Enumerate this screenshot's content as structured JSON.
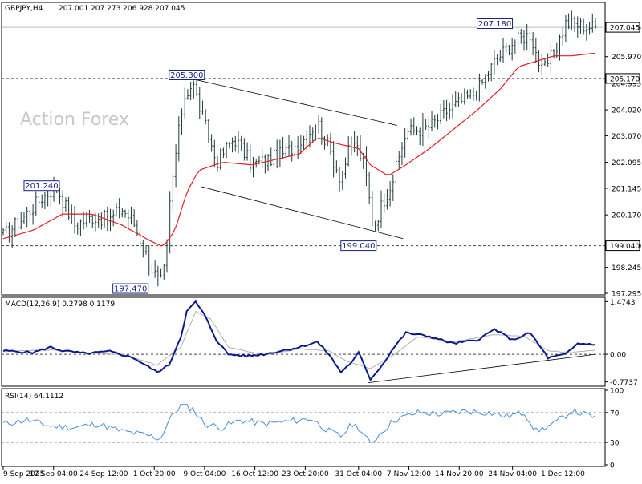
{
  "header": {
    "symbol": "GBPJPY,H4",
    "ohlc": "207.001 207.273 206.928 207.045",
    "watermark": "Action Forex"
  },
  "colors": {
    "candle": "#1f3a3a",
    "ma": "#e0202a",
    "macd": "#0a1a8c",
    "signal": "#b0b0b0",
    "rsi": "#4a8fd8",
    "label_box": "#1a237e",
    "grid_dash": "#444444"
  },
  "chart_data": [
    {
      "type": "candlestick",
      "title": "GBPJPY,H4",
      "ylim": [
        197.295,
        207.9
      ],
      "yticks": [
        "207.045",
        "205.970",
        "204.995",
        "204.020",
        "203.070",
        "202.095",
        "201.145",
        "200.170",
        "199.040",
        "198.245",
        "197.295"
      ],
      "current_price": "207.045",
      "horizontal_lines": [
        {
          "value": 205.17,
          "label": "205.170"
        },
        {
          "value": 199.04,
          "label": "199.040"
        }
      ],
      "annotations": [
        {
          "x": 0.065,
          "value": 201.24,
          "label": "201.240"
        },
        {
          "x": 0.31,
          "value": 205.3,
          "label": "205.300"
        },
        {
          "x": 0.215,
          "value": 197.47,
          "label": "197.470"
        },
        {
          "x": 0.6,
          "value": 199.04,
          "label": "199.040"
        },
        {
          "x": 0.83,
          "value": 207.18,
          "label": "207.180"
        }
      ],
      "price_keypoints": [
        [
          0,
          199.4
        ],
        [
          0.03,
          200.0
        ],
        [
          0.065,
          200.8
        ],
        [
          0.09,
          201.2
        ],
        [
          0.12,
          199.8
        ],
        [
          0.15,
          200.1
        ],
        [
          0.18,
          200.0
        ],
        [
          0.2,
          200.4
        ],
        [
          0.22,
          199.9
        ],
        [
          0.245,
          198.5
        ],
        [
          0.265,
          197.6
        ],
        [
          0.275,
          198.4
        ],
        [
          0.28,
          200.3
        ],
        [
          0.29,
          202.2
        ],
        [
          0.305,
          204.5
        ],
        [
          0.32,
          205.0
        ],
        [
          0.34,
          203.5
        ],
        [
          0.36,
          202.1
        ],
        [
          0.39,
          203.0
        ],
        [
          0.42,
          202.0
        ],
        [
          0.45,
          202.2
        ],
        [
          0.48,
          202.5
        ],
        [
          0.51,
          203.0
        ],
        [
          0.53,
          203.6
        ],
        [
          0.55,
          202.6
        ],
        [
          0.57,
          201.5
        ],
        [
          0.59,
          203.0
        ],
        [
          0.61,
          202.0
        ],
        [
          0.625,
          199.7
        ],
        [
          0.64,
          200.6
        ],
        [
          0.66,
          201.6
        ],
        [
          0.68,
          203.2
        ],
        [
          0.72,
          203.4
        ],
        [
          0.75,
          204.0
        ],
        [
          0.8,
          204.7
        ],
        [
          0.83,
          205.8
        ],
        [
          0.86,
          206.5
        ],
        [
          0.89,
          206.8
        ],
        [
          0.91,
          205.4
        ],
        [
          0.93,
          206.1
        ],
        [
          0.95,
          207.2
        ],
        [
          1.0,
          207.05
        ]
      ],
      "ma_keypoints": [
        [
          0,
          199.3
        ],
        [
          0.05,
          199.6
        ],
        [
          0.1,
          200.2
        ],
        [
          0.15,
          200.2
        ],
        [
          0.2,
          199.8
        ],
        [
          0.25,
          199.2
        ],
        [
          0.27,
          199.0
        ],
        [
          0.29,
          199.6
        ],
        [
          0.31,
          201.0
        ],
        [
          0.33,
          201.8
        ],
        [
          0.37,
          202.1
        ],
        [
          0.42,
          202.0
        ],
        [
          0.46,
          202.2
        ],
        [
          0.5,
          202.4
        ],
        [
          0.53,
          203.0
        ],
        [
          0.56,
          202.8
        ],
        [
          0.6,
          202.6
        ],
        [
          0.62,
          202.0
        ],
        [
          0.65,
          201.6
        ],
        [
          0.68,
          202.0
        ],
        [
          0.72,
          202.6
        ],
        [
          0.76,
          203.3
        ],
        [
          0.8,
          204.0
        ],
        [
          0.84,
          204.8
        ],
        [
          0.87,
          205.6
        ],
        [
          0.9,
          205.8
        ],
        [
          0.93,
          206.0
        ],
        [
          0.96,
          206.0
        ],
        [
          1.0,
          206.1
        ]
      ],
      "channel_lines": [
        {
          "from": [
            0.31,
            205.2
          ],
          "to": [
            0.665,
            203.45
          ]
        },
        {
          "from": [
            0.335,
            201.2
          ],
          "to": [
            0.675,
            199.3
          ]
        }
      ]
    },
    {
      "type": "line",
      "title": "MACD(12,26,9) 0.2798 0.1179",
      "ylim": [
        -0.85,
        1.55
      ],
      "yticks": [
        "1.4743",
        "0.00",
        "-0.7737"
      ],
      "zero_label": "0.00",
      "series": [
        {
          "values": [
            [
              0,
              0.1
            ],
            [
              0.05,
              0.05
            ],
            [
              0.08,
              0.2
            ],
            [
              0.1,
              0.1
            ],
            [
              0.14,
              0.02
            ],
            [
              0.18,
              0.08
            ],
            [
              0.22,
              -0.1
            ],
            [
              0.26,
              -0.5
            ],
            [
              0.28,
              -0.3
            ],
            [
              0.3,
              0.5
            ],
            [
              0.31,
              1.2
            ],
            [
              0.325,
              1.47
            ],
            [
              0.34,
              1.1
            ],
            [
              0.36,
              0.4
            ],
            [
              0.38,
              0.0
            ],
            [
              0.41,
              -0.05
            ],
            [
              0.44,
              0.0
            ],
            [
              0.47,
              0.1
            ],
            [
              0.5,
              0.2
            ],
            [
              0.53,
              0.35
            ],
            [
              0.55,
              0.0
            ],
            [
              0.57,
              -0.5
            ],
            [
              0.59,
              -0.2
            ],
            [
              0.6,
              0.05
            ],
            [
              0.62,
              -0.7
            ],
            [
              0.64,
              -0.3
            ],
            [
              0.66,
              0.2
            ],
            [
              0.68,
              0.6
            ],
            [
              0.72,
              0.5
            ],
            [
              0.76,
              0.3
            ],
            [
              0.8,
              0.4
            ],
            [
              0.83,
              0.7
            ],
            [
              0.86,
              0.4
            ],
            [
              0.89,
              0.6
            ],
            [
              0.92,
              -0.1
            ],
            [
              0.95,
              0.0
            ],
            [
              0.97,
              0.3
            ],
            [
              1.0,
              0.28
            ]
          ]
        },
        {
          "values": [
            [
              0,
              0.08
            ],
            [
              0.08,
              0.12
            ],
            [
              0.14,
              0.04
            ],
            [
              0.2,
              0.0
            ],
            [
              0.26,
              -0.3
            ],
            [
              0.3,
              0.2
            ],
            [
              0.325,
              1.2
            ],
            [
              0.35,
              1.0
            ],
            [
              0.38,
              0.2
            ],
            [
              0.44,
              -0.02
            ],
            [
              0.5,
              0.15
            ],
            [
              0.55,
              0.1
            ],
            [
              0.58,
              -0.2
            ],
            [
              0.62,
              -0.4
            ],
            [
              0.66,
              0.0
            ],
            [
              0.7,
              0.5
            ],
            [
              0.76,
              0.35
            ],
            [
              0.83,
              0.55
            ],
            [
              0.88,
              0.5
            ],
            [
              0.92,
              0.1
            ],
            [
              0.96,
              0.05
            ],
            [
              1.0,
              0.12
            ]
          ]
        }
      ],
      "trendline": {
        "from": [
          0.615,
          -0.8
        ],
        "to": [
          1.0,
          0.0
        ]
      }
    },
    {
      "type": "line",
      "title": "RSI(14) 64.1112",
      "ylim": [
        0,
        100
      ],
      "yticks": [
        "100",
        "70",
        "30",
        "0"
      ],
      "levels": [
        70,
        30
      ],
      "series": [
        {
          "values": [
            [
              0,
              55
            ],
            [
              0.04,
              60
            ],
            [
              0.08,
              52
            ],
            [
              0.12,
              50
            ],
            [
              0.16,
              55
            ],
            [
              0.2,
              45
            ],
            [
              0.24,
              40
            ],
            [
              0.265,
              35
            ],
            [
              0.28,
              60
            ],
            [
              0.3,
              80
            ],
            [
              0.32,
              75
            ],
            [
              0.34,
              55
            ],
            [
              0.37,
              50
            ],
            [
              0.4,
              60
            ],
            [
              0.44,
              55
            ],
            [
              0.48,
              58
            ],
            [
              0.52,
              62
            ],
            [
              0.55,
              45
            ],
            [
              0.57,
              38
            ],
            [
              0.59,
              55
            ],
            [
              0.6,
              50
            ],
            [
              0.62,
              28
            ],
            [
              0.64,
              45
            ],
            [
              0.66,
              60
            ],
            [
              0.7,
              70
            ],
            [
              0.74,
              68
            ],
            [
              0.78,
              72
            ],
            [
              0.82,
              70
            ],
            [
              0.85,
              65
            ],
            [
              0.88,
              70
            ],
            [
              0.9,
              45
            ],
            [
              0.93,
              55
            ],
            [
              0.96,
              72
            ],
            [
              1.0,
              64
            ]
          ]
        }
      ]
    }
  ],
  "x_axis_labels": [
    "9 Sep 2025",
    "17 Sep 04:00",
    "24 Sep 12:00",
    "1 Oct 20:00",
    "9 Oct 04:00",
    "16 Oct 12:00",
    "23 Oct 20:00",
    "31 Oct 04:00",
    "7 Nov 12:00",
    "14 Nov 20:00",
    "24 Nov 04:00",
    "1 Dec 12:00"
  ]
}
